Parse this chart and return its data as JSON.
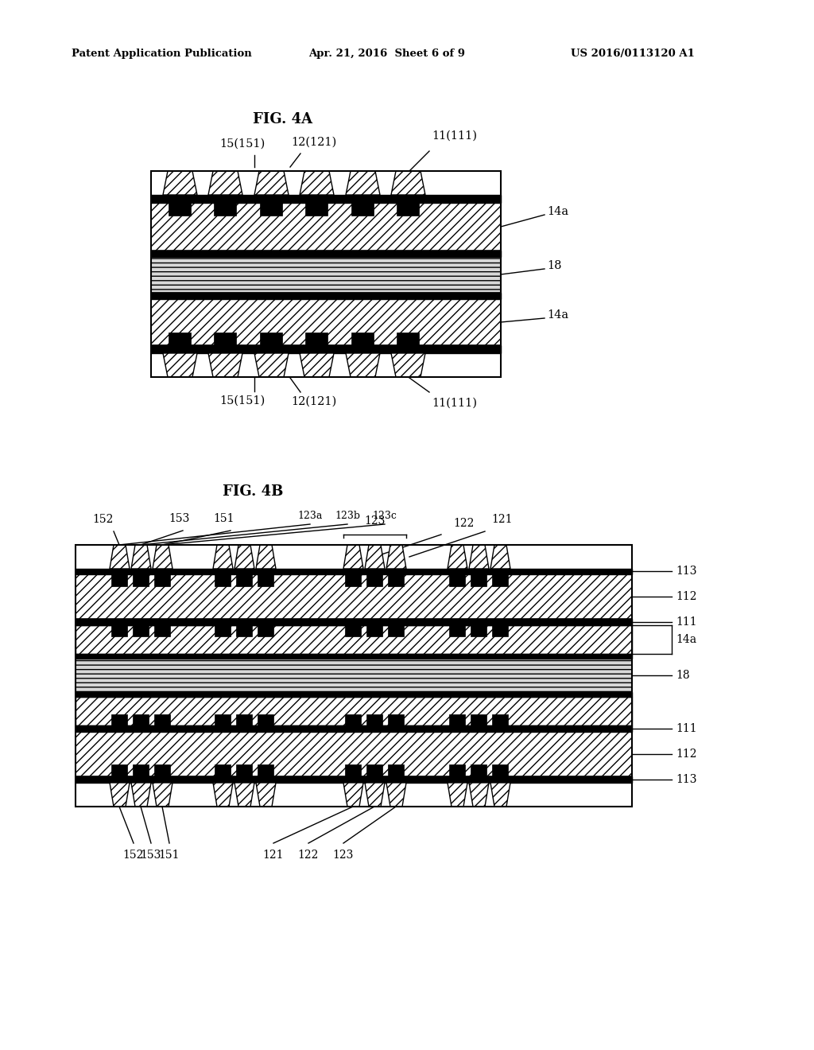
{
  "bg_color": "#ffffff",
  "header_text": "Patent Application Publication",
  "header_date": "Apr. 21, 2016  Sheet 6 of 9",
  "header_patent": "US 2016/0113120 A1",
  "fig4a_label": "FIG. 4A",
  "fig4b_label": "FIG. 4B",
  "line_color": "#000000",
  "fig4a_labels_top": [
    "15(151)",
    "12(121)",
    "11(111)"
  ],
  "fig4a_labels_right": [
    "14a",
    "18",
    "14a"
  ],
  "fig4a_labels_bottom": [
    "15(151)",
    "12(121)",
    "11(111)"
  ],
  "fig4b_labels_top": [
    "152",
    "153",
    "151",
    "123",
    "122",
    "121"
  ],
  "fig4b_sub_labels": [
    "123a",
    "123b",
    "123c"
  ],
  "fig4b_labels_right": [
    "113",
    "112",
    "111",
    "14a",
    "18",
    "111",
    "112",
    "113"
  ],
  "fig4b_labels_bottom": [
    "151",
    "152",
    "153",
    "121",
    "122",
    "123"
  ]
}
